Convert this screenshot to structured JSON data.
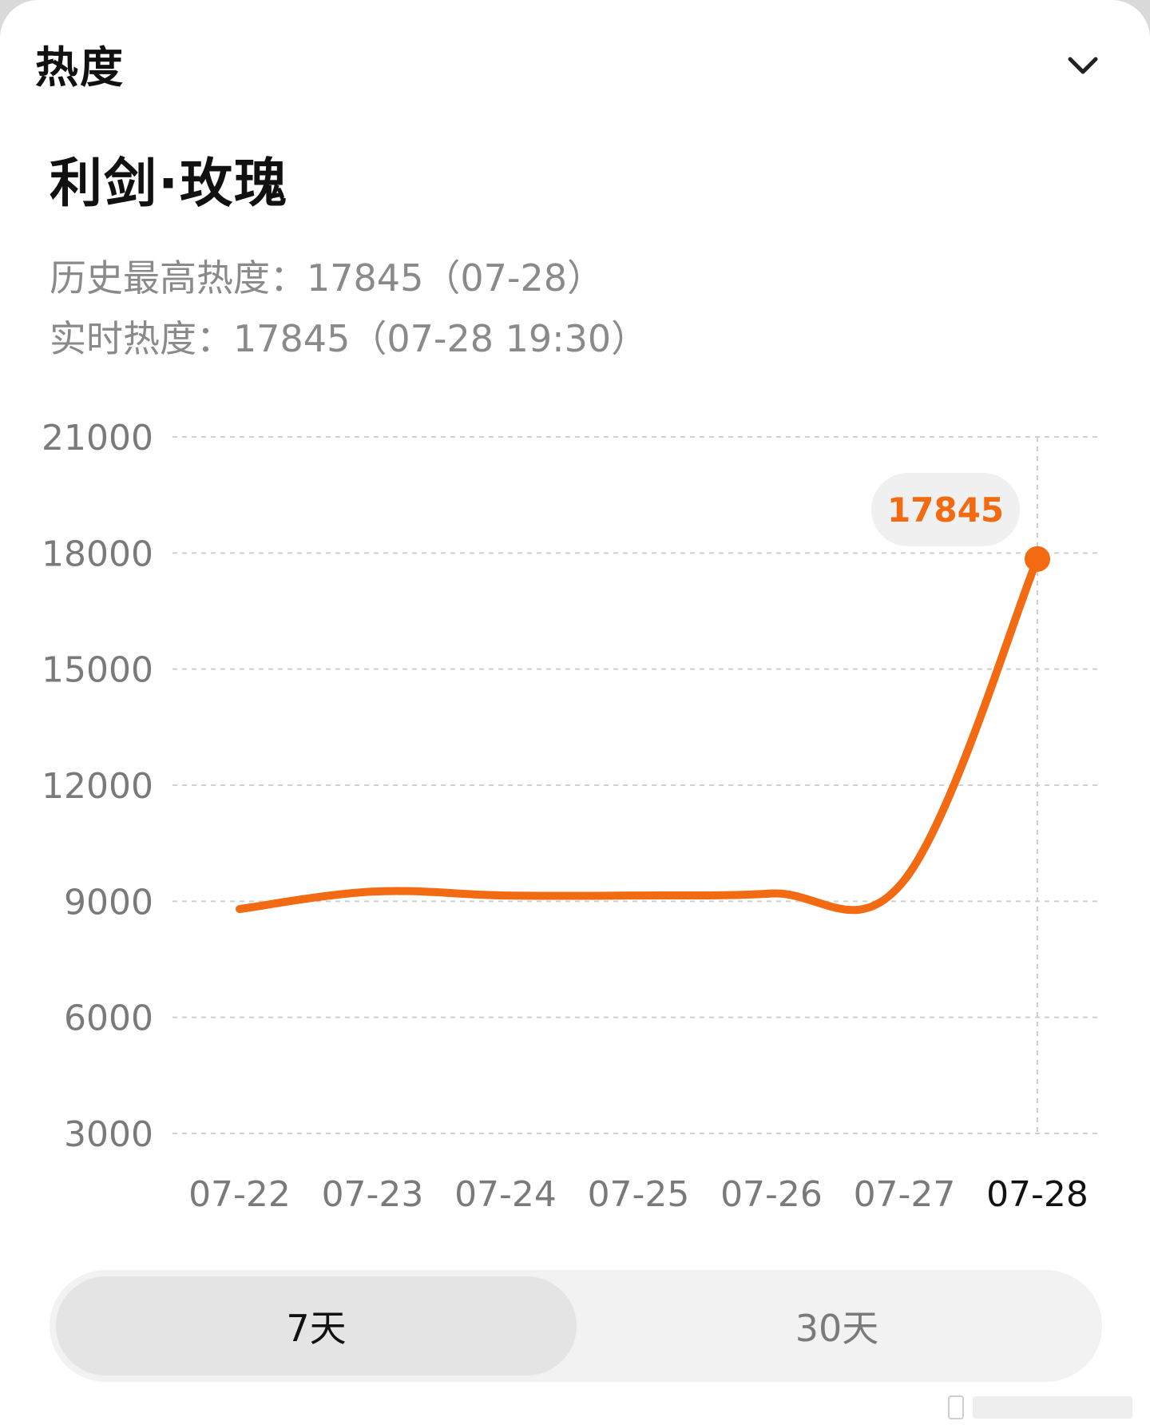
{
  "header": {
    "title": "热度",
    "collapse_icon": "chevron-down-icon"
  },
  "show": {
    "title": "利剑·玫瑰"
  },
  "stats": {
    "historical_peak": "历史最高热度：17845（07-28）",
    "realtime": "实时热度：17845（07-28 19:30）"
  },
  "colors": {
    "accent": "#f26a12",
    "grid": "#cfcfcf",
    "label": "#7a7a7a",
    "active_label": "#111111"
  },
  "chart_data": {
    "type": "line",
    "title": "",
    "xlabel": "",
    "ylabel": "",
    "categories": [
      "07-22",
      "07-23",
      "07-24",
      "07-25",
      "07-26",
      "07-27",
      "07-28"
    ],
    "series": [
      {
        "values": [
          8800,
          9250,
          9150,
          9150,
          9200,
          9550,
          17845
        ]
      }
    ],
    "y_ticks": [
      "21000",
      "18000",
      "15000",
      "12000",
      "9000",
      "6000",
      "3000"
    ],
    "ylim": [
      3000,
      21000
    ],
    "grid": true,
    "active_category": "07-28",
    "peak_label": "17845"
  },
  "range_toggle": {
    "options": [
      "7天",
      "30天"
    ],
    "selected": "7天"
  }
}
